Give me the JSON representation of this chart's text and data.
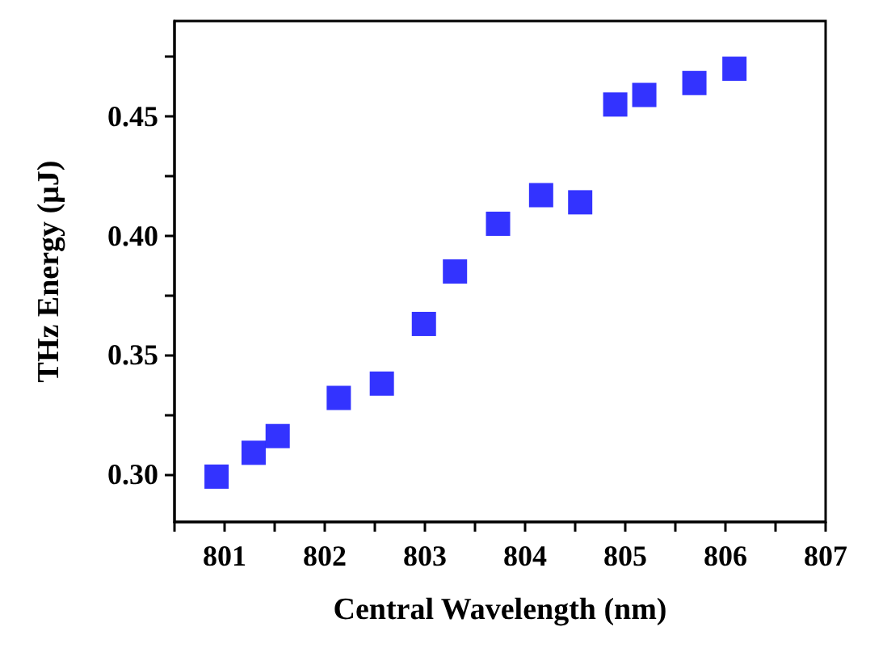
{
  "chart_data": {
    "type": "scatter",
    "xlabel": "Central Wavelength (nm)",
    "ylabel": "THz Energy (μJ)",
    "marker": "square",
    "grid": false,
    "x": [
      800.92,
      801.29,
      801.53,
      802.14,
      802.57,
      802.99,
      803.3,
      803.73,
      804.16,
      804.55,
      804.9,
      805.19,
      805.69,
      806.09
    ],
    "series": [
      {
        "color": "#0000ff",
        "values": [
          0.299,
          0.309,
          0.316,
          0.332,
          0.338,
          0.363,
          0.385,
          0.405,
          0.417,
          0.414,
          0.455,
          0.459,
          0.464,
          0.47
        ]
      }
    ],
    "xlim": [
      800.5,
      807
    ],
    "xticks": [
      {
        "value": 800.5,
        "label": null
      },
      801,
      {
        "value": 801.5,
        "label": null
      },
      802,
      {
        "value": 802.5,
        "label": null
      },
      803,
      {
        "value": 803.5,
        "label": null
      },
      804,
      {
        "value": 804.5,
        "label": null
      },
      805,
      {
        "value": 805.5,
        "label": null
      },
      806,
      {
        "value": 806.5,
        "label": null
      },
      807
    ],
    "ylim": [
      0.28,
      0.49
    ],
    "yticks": [
      {
        "value": 0.3,
        "label": "0.30"
      },
      {
        "value": 0.325,
        "label": null
      },
      {
        "value": 0.35,
        "label": "0.35"
      },
      {
        "value": 0.375,
        "label": null
      },
      {
        "value": 0.4,
        "label": "0.40"
      },
      {
        "value": 0.425,
        "label": null
      },
      {
        "value": 0.45,
        "label": "0.45"
      },
      {
        "value": 0.475,
        "label": null
      }
    ]
  }
}
